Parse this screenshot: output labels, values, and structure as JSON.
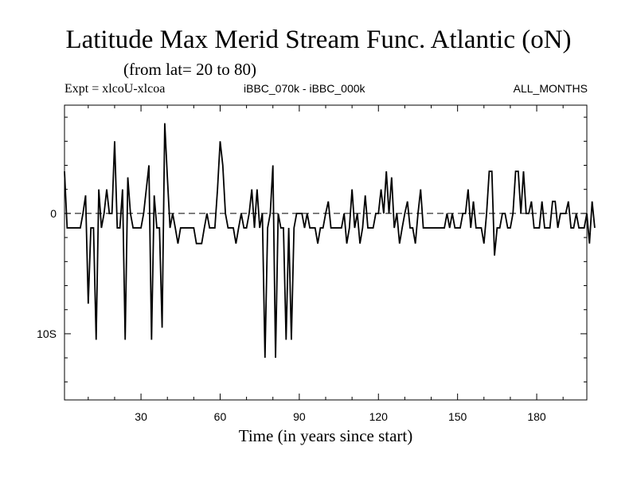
{
  "chart_data": {
    "type": "line",
    "title": "Latitude Max Merid Stream Func. Atlantic (oN)",
    "subtitle": "(from lat= 20 to 80)",
    "annotations": {
      "left": "Expt = xlcoU-xlcoa",
      "center": "iBBC_070k - iBBC_000k",
      "right": "ALL_MONTHS"
    },
    "xlabel": "Time (in years since start)",
    "ylabel": "",
    "xlim": [
      1,
      199
    ],
    "ylim": [
      -15.5,
      9
    ],
    "x_ticks": [
      30,
      60,
      90,
      120,
      150,
      180
    ],
    "y_ticks": [
      {
        "value": 0,
        "label": "0"
      },
      {
        "value": -10,
        "label": "10S"
      }
    ],
    "zero_line": "dashed",
    "x_start": 1,
    "x_step": 1,
    "series": [
      {
        "name": "xlcoU-xlcoa",
        "values": [
          3.5,
          -1.2,
          -1.2,
          -1.2,
          -1.2,
          -1.2,
          -1.2,
          0,
          1.5,
          -7.5,
          -1.2,
          -1.2,
          -10.5,
          2,
          -1.2,
          0,
          2,
          0,
          0,
          6,
          -1.2,
          -1.2,
          2,
          -10.5,
          3,
          0,
          -1.2,
          -1.2,
          -1.2,
          -1.2,
          0,
          2,
          4,
          -10.5,
          1.5,
          -1.2,
          -1.2,
          -9.5,
          7.5,
          3,
          -1.2,
          0,
          -1.2,
          -2.5,
          -1.2,
          -1.2,
          -1.2,
          -1.2,
          -1.2,
          -1.2,
          -2.5,
          -2.5,
          -2.5,
          -1.2,
          0,
          -1.2,
          -1.2,
          -1.2,
          2,
          6,
          4,
          0,
          -1.2,
          -1.2,
          -1.2,
          -2.5,
          -1.2,
          0,
          -1.2,
          -1.2,
          0,
          2,
          -1.2,
          2,
          -1.2,
          0,
          -12,
          -1.2,
          0,
          4,
          -12,
          0,
          -1.2,
          -1.2,
          -10.5,
          -1.2,
          -10.5,
          -1.2,
          0,
          0,
          0,
          -1.2,
          0,
          -1.2,
          -1.2,
          -1.2,
          -2.5,
          -1.2,
          -1.2,
          0,
          1,
          -1.2,
          -1.2,
          -1.2,
          -1.2,
          -1.2,
          0,
          -2.5,
          -1.2,
          2,
          -1.2,
          0,
          -2.5,
          -1.2,
          1.5,
          -1.2,
          -1.2,
          -1.2,
          0,
          0,
          2,
          0,
          3.5,
          0,
          3,
          -1.2,
          0,
          -2.5,
          -1.2,
          0,
          1,
          -1.2,
          -1.2,
          -2.5,
          0,
          2,
          -1.2,
          -1.2,
          -1.2,
          -1.2,
          -1.2,
          -1.2,
          -1.2,
          -1.2,
          -1.2,
          0,
          -1.2,
          0,
          -1.2,
          -1.2,
          -1.2,
          0,
          0,
          2,
          -1.2,
          1,
          -1.2,
          -1.2,
          -1.2,
          -2.5,
          0,
          3.5,
          3.5,
          -3.5,
          -1.2,
          -1.2,
          0,
          0,
          -1.2,
          -1.2,
          0,
          3.5,
          3.5,
          0,
          3.5,
          0,
          0,
          1,
          -1.2,
          -1.2,
          -1.2,
          1,
          -1.2,
          -1.2,
          -1.2,
          1,
          1,
          -1.2,
          0,
          0,
          0,
          1,
          -1.2,
          -1.2,
          0,
          -1.2,
          -1.2,
          -1.2,
          0,
          -2.5,
          1,
          -1.2
        ]
      }
    ]
  }
}
